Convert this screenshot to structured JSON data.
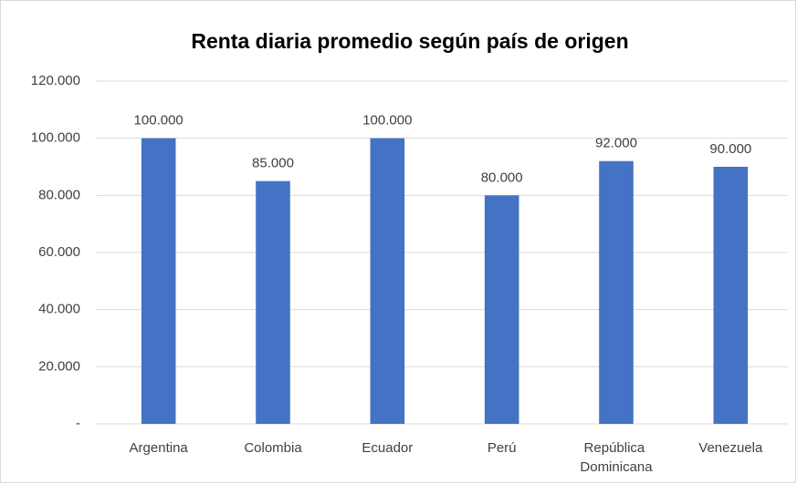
{
  "chart_data": {
    "type": "bar",
    "title": "Renta diaria promedio según país de origen",
    "categories": [
      "Argentina",
      "Colombia",
      "Ecuador",
      "Perú",
      "República Dominicana",
      "Venezuela"
    ],
    "values": [
      100000,
      85000,
      100000,
      80000,
      92000,
      90000
    ],
    "value_labels": [
      "100.000",
      "85.000",
      "100.000",
      "80.000",
      "92.000",
      "90.000"
    ],
    "color": "#4472c4",
    "ylim": [
      0,
      120000
    ],
    "yticks": [
      {
        "value": 0,
        "label": "-"
      },
      {
        "value": 20000,
        "label": "20.000"
      },
      {
        "value": 40000,
        "label": "40.000"
      },
      {
        "value": 60000,
        "label": "60.000"
      },
      {
        "value": 80000,
        "label": "80.000"
      },
      {
        "value": 100000,
        "label": "100.000"
      },
      {
        "value": 120000,
        "label": "120.000"
      }
    ],
    "grid": true
  }
}
